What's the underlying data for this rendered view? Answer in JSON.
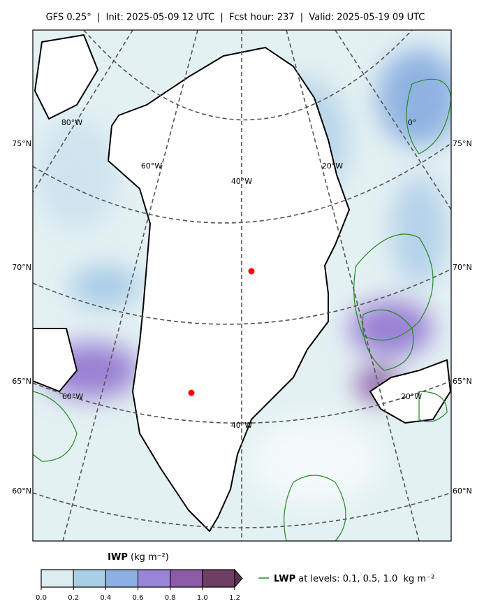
{
  "header": {
    "title": "GFS 0.25°  |  Init: 2025-05-09 12 UTC  |  Fcst hour: 237  |  Valid: 2025-05-19 09 UTC"
  },
  "map": {
    "lat_labels": [
      "75°N",
      "70°N",
      "65°N",
      "60°N"
    ],
    "lon_labels": [
      "80°W",
      "60°W",
      "40°W",
      "20°W",
      "0°",
      "60°W",
      "40°W",
      "20°W"
    ]
  },
  "colorbar": {
    "label": "IWP",
    "units": "(kg m⁻²)",
    "lim": [
      0,
      1.2
    ],
    "ticks": [
      {
        "value": 0,
        "label": "0.0"
      },
      0.2,
      0.4,
      0.6,
      0.8,
      {
        "value": 1,
        "label": "1.0"
      },
      1.2
    ],
    "colors": [
      "#dcedf1",
      "#a8cfe5",
      "#8cb0e2",
      "#9985d8",
      "#8c5ba6",
      "#6f3e64"
    ],
    "extend_color": "#5a3350"
  },
  "legend": {
    "name": "LWP",
    "text": "at levels: 0.1, 0.5, 1.0  kg m⁻²",
    "color": "#228b22"
  }
}
